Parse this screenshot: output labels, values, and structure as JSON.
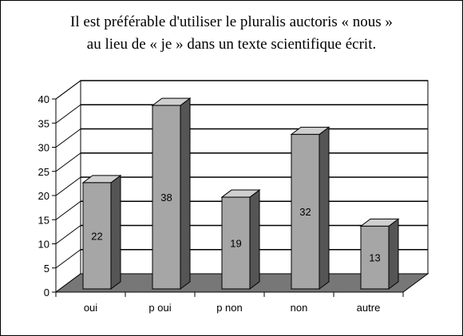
{
  "chart_data": {
    "type": "bar",
    "title_lines": [
      "Il est préférable d'utiliser le pluralis auctoris « nous »",
      "au lieu de « je » dans un texte scientifique écrit."
    ],
    "categories": [
      "oui",
      "p oui",
      "p non",
      "non",
      "autre"
    ],
    "values": [
      22,
      38,
      19,
      32,
      13
    ],
    "ylim": [
      0,
      40
    ],
    "yticks": [
      0,
      5,
      10,
      15,
      20,
      25,
      30,
      35,
      40
    ],
    "grid": true,
    "legend": "none",
    "style": "3d-column",
    "colors": {
      "bar_front": "#a6a6a6",
      "bar_top": "#cfcfcf",
      "bar_side": "#555555",
      "floor": "#777777",
      "wall": "#ffffff"
    }
  }
}
